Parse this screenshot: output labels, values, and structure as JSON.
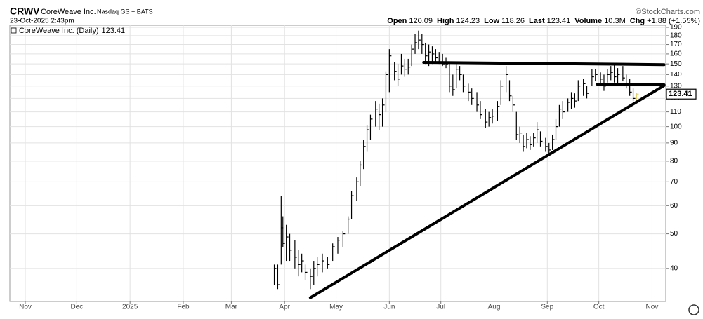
{
  "chart_data": {
    "type": "hlc",
    "symbol": "CRWV",
    "name": "CoreWeave Inc.",
    "exchange": "Nasdaq GS + BATS",
    "source": "©StockCharts.com",
    "date": "23-Oct-2025 2:43pm",
    "quote": [
      {
        "label": "Open",
        "value": 120.09
      },
      {
        "label": "High",
        "value": 124.23
      },
      {
        "label": "Low",
        "value": 118.26
      },
      {
        "label": "Last",
        "value": 123.41
      },
      {
        "label": "Volume",
        "value": "10.3M"
      },
      {
        "label": "Chg",
        "value": "+1.88 (+1.55%)"
      }
    ],
    "legend": "CoreWeave Inc. (Daily)",
    "log_scale": true,
    "grid": true,
    "color": "#000000",
    "last_color": "#e6d36a",
    "ylim": [
      32.3,
      192.6
    ],
    "yticks": [
      40,
      50,
      60,
      70,
      80,
      90,
      100,
      110,
      120,
      130,
      140,
      150,
      160,
      170,
      180,
      190
    ],
    "xlim": [
      -9,
      373
    ],
    "xticks": [
      {
        "value": 0,
        "label": "Nov"
      },
      {
        "value": 30,
        "label": "Dec"
      },
      {
        "value": 61,
        "label": "2025"
      },
      {
        "value": 92,
        "label": "Feb"
      },
      {
        "value": 120,
        "label": "Mar"
      },
      {
        "value": 151,
        "label": "Apr"
      },
      {
        "value": 181,
        "label": "May"
      },
      {
        "value": 212,
        "label": "Jun"
      },
      {
        "value": 242,
        "label": "Jul"
      },
      {
        "value": 273,
        "label": "Aug"
      },
      {
        "value": 304,
        "label": "Sep"
      },
      {
        "value": 334,
        "label": "Oct"
      },
      {
        "value": 365,
        "label": "Nov"
      }
    ],
    "bars": {
      "x": [
        145,
        147,
        149,
        150,
        152,
        154,
        157,
        159,
        161,
        163,
        166,
        168,
        170,
        173,
        176,
        179,
        182,
        185,
        188,
        190,
        193,
        195,
        197,
        199,
        201,
        204,
        206,
        208,
        210,
        212,
        215,
        217,
        219,
        221,
        223,
        225,
        227,
        229,
        231,
        233,
        235,
        237,
        239,
        241,
        243,
        245,
        247,
        249,
        251,
        253,
        255,
        258,
        260,
        263,
        265,
        268,
        270,
        272,
        275,
        277,
        280,
        282,
        284,
        286,
        288,
        290,
        292,
        294,
        296,
        298,
        300,
        303,
        305,
        307,
        309,
        311,
        313,
        316,
        318,
        320,
        322,
        325,
        327,
        330,
        332,
        335,
        337,
        339,
        341,
        343,
        345,
        348,
        350,
        352,
        354,
        356
      ],
      "high": [
        41,
        41,
        64,
        56,
        53,
        50,
        48,
        45,
        44,
        41,
        40,
        42,
        43,
        44,
        43,
        47,
        49,
        51,
        56,
        66,
        72,
        80,
        92,
        101,
        108,
        118,
        116,
        120,
        143,
        165,
        152,
        150,
        160,
        155,
        155,
        170,
        182,
        186,
        182,
        172,
        170,
        168,
        165,
        162,
        160,
        156,
        150,
        140,
        150,
        148,
        140,
        132,
        128,
        125,
        118,
        112,
        110,
        112,
        118,
        135,
        148,
        135,
        122,
        110,
        100,
        95,
        96,
        94,
        96,
        103,
        97,
        93,
        90,
        95,
        105,
        115,
        118,
        120,
        125,
        124,
        135,
        136,
        130,
        145,
        145,
        142,
        140,
        145,
        148,
        150,
        146,
        148,
        140,
        136,
        128,
        124.23
      ],
      "low": [
        36,
        35,
        41,
        46,
        42,
        42,
        40,
        38,
        39,
        37,
        35,
        36,
        38,
        39,
        40,
        42,
        44,
        46,
        50,
        55,
        62,
        68,
        76,
        85,
        92,
        100,
        98,
        100,
        110,
        125,
        135,
        130,
        140,
        138,
        140,
        148,
        160,
        165,
        160,
        150,
        148,
        150,
        152,
        150,
        148,
        146,
        125,
        122,
        128,
        135,
        125,
        118,
        115,
        110,
        105,
        99,
        100,
        102,
        104,
        115,
        125,
        118,
        110,
        92,
        90,
        85,
        87,
        86,
        88,
        90,
        88,
        85,
        83,
        86,
        92,
        100,
        105,
        110,
        112,
        113,
        118,
        122,
        120,
        130,
        134,
        132,
        126,
        133,
        135,
        133,
        132,
        134,
        128,
        122,
        118,
        118.26
      ],
      "close": [
        40,
        36,
        52,
        47,
        49,
        45,
        43,
        41,
        42,
        39,
        38,
        40,
        41,
        42,
        41,
        46,
        48,
        50,
        55,
        64,
        70,
        78,
        88,
        98,
        105,
        112,
        108,
        115,
        140,
        158,
        143,
        136,
        148,
        145,
        147,
        165,
        172,
        175,
        170,
        158,
        162,
        160,
        156,
        152,
        150,
        150,
        130,
        127,
        145,
        140,
        130,
        125,
        120,
        115,
        108,
        103,
        106,
        107,
        114,
        130,
        140,
        122,
        115,
        95,
        96,
        88,
        92,
        89,
        93,
        98,
        91,
        88,
        86,
        92,
        100,
        112,
        110,
        117,
        120,
        118,
        130,
        132,
        124,
        138,
        140,
        136,
        130,
        140,
        142,
        138,
        140,
        137,
        132,
        125,
        120,
        123.41
      ]
    },
    "trendlines": [
      {
        "x": [
          166,
          372
        ],
        "y": [
          33.1,
          130.4
        ]
      },
      {
        "x": [
          232,
          372
        ],
        "y": [
          151.5,
          149.3
        ]
      },
      {
        "x": [
          333,
          372
        ],
        "y": [
          131.6,
          131
        ]
      }
    ]
  }
}
